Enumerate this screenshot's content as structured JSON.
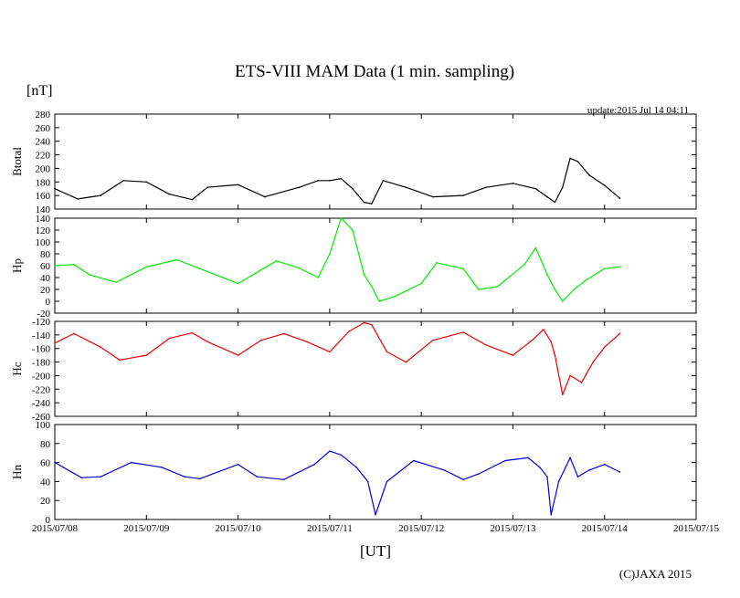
{
  "title": "ETS-VIII MAM Data (1 min. sampling)",
  "unit_label": "[nT]",
  "update_text": "update:2015 Jul 14 04:11",
  "xlabel": "[UT]",
  "copyright": "(C)JAXA 2015",
  "chart_data": [
    {
      "type": "line",
      "name": "Btotal",
      "ylabel": "Btotal",
      "color": "#000000",
      "ylim": [
        140,
        280
      ],
      "yticks": [
        140,
        160,
        180,
        200,
        220,
        240,
        260,
        280
      ],
      "x": [
        "2015/07/08 00:00",
        "2015/07/08 06:00",
        "2015/07/08 12:00",
        "2015/07/08 18:00",
        "2015/07/09 00:00",
        "2015/07/09 06:00",
        "2015/07/09 12:00",
        "2015/07/09 16:00",
        "2015/07/10 00:00",
        "2015/07/10 07:00",
        "2015/07/10 16:00",
        "2015/07/10 21:00",
        "2015/07/11 00:00",
        "2015/07/11 03:00",
        "2015/07/11 06:00",
        "2015/07/11 09:00",
        "2015/07/11 11:00",
        "2015/07/11 14:00",
        "2015/07/11 20:00",
        "2015/07/12 03:00",
        "2015/07/12 11:00",
        "2015/07/12 17:00",
        "2015/07/13 00:00",
        "2015/07/13 06:00",
        "2015/07/13 09:00",
        "2015/07/13 11:00",
        "2015/07/13 13:00",
        "2015/07/13 15:00",
        "2015/07/13 17:00",
        "2015/07/13 20:00",
        "2015/07/14 00:00",
        "2015/07/14 04:00"
      ],
      "values": [
        170,
        155,
        160,
        182,
        180,
        162,
        154,
        172,
        176,
        158,
        172,
        182,
        182,
        185,
        170,
        150,
        148,
        182,
        172,
        158,
        160,
        172,
        178,
        170,
        158,
        150,
        172,
        215,
        210,
        190,
        175,
        156
      ]
    },
    {
      "type": "line",
      "name": "Hp",
      "ylabel": "Hp",
      "color": "#00ee00",
      "ylim": [
        -20,
        140
      ],
      "yticks": [
        -20,
        0,
        20,
        40,
        60,
        80,
        100,
        120,
        140
      ],
      "x": [
        "2015/07/08 00:00",
        "2015/07/08 05:00",
        "2015/07/08 09:00",
        "2015/07/08 16:00",
        "2015/07/09 00:00",
        "2015/07/09 08:00",
        "2015/07/09 14:00",
        "2015/07/10 00:00",
        "2015/07/10 10:00",
        "2015/07/10 16:00",
        "2015/07/10 21:00",
        "2015/07/11 00:00",
        "2015/07/11 03:00",
        "2015/07/11 06:00",
        "2015/07/11 09:00",
        "2015/07/11 11:00",
        "2015/07/11 13:00",
        "2015/07/11 17:00",
        "2015/07/12 00:00",
        "2015/07/12 04:00",
        "2015/07/12 11:00",
        "2015/07/12 15:00",
        "2015/07/12 20:00",
        "2015/07/13 03:00",
        "2015/07/13 06:00",
        "2015/07/13 09:00",
        "2015/07/13 11:00",
        "2015/07/13 13:00",
        "2015/07/13 16:00",
        "2015/07/13 19:00",
        "2015/07/14 00:00",
        "2015/07/14 04:00"
      ],
      "values": [
        60,
        62,
        45,
        32,
        58,
        70,
        55,
        30,
        68,
        56,
        40,
        80,
        140,
        120,
        45,
        25,
        0,
        8,
        30,
        65,
        55,
        20,
        25,
        62,
        90,
        45,
        20,
        0,
        20,
        35,
        55,
        58
      ]
    },
    {
      "type": "line",
      "name": "Hc",
      "ylabel": "Hc",
      "color": "#ee0000",
      "ylim": [
        -260,
        -120
      ],
      "yticks": [
        -260,
        -240,
        -220,
        -200,
        -180,
        -160,
        -140,
        -120
      ],
      "x": [
        "2015/07/08 00:00",
        "2015/07/08 05:00",
        "2015/07/08 12:00",
        "2015/07/08 17:00",
        "2015/07/09 00:00",
        "2015/07/09 06:00",
        "2015/07/09 12:00",
        "2015/07/09 16:00",
        "2015/07/10 00:00",
        "2015/07/10 06:00",
        "2015/07/10 12:00",
        "2015/07/10 18:00",
        "2015/07/11 00:00",
        "2015/07/11 05:00",
        "2015/07/11 09:00",
        "2015/07/11 11:00",
        "2015/07/11 15:00",
        "2015/07/11 20:00",
        "2015/07/12 03:00",
        "2015/07/12 11:00",
        "2015/07/12 17:00",
        "2015/07/13 00:00",
        "2015/07/13 05:00",
        "2015/07/13 08:00",
        "2015/07/13 10:00",
        "2015/07/13 11:00",
        "2015/07/13 13:00",
        "2015/07/13 15:00",
        "2015/07/13 18:00",
        "2015/07/13 21:00",
        "2015/07/14 00:00",
        "2015/07/14 04:00"
      ],
      "values": [
        -152,
        -138,
        -158,
        -177,
        -170,
        -145,
        -137,
        -150,
        -170,
        -148,
        -138,
        -150,
        -165,
        -135,
        -122,
        -125,
        -165,
        -180,
        -148,
        -136,
        -155,
        -170,
        -148,
        -132,
        -150,
        -170,
        -228,
        -200,
        -210,
        -180,
        -158,
        -138
      ]
    },
    {
      "type": "line",
      "name": "Hn",
      "ylabel": "Hn",
      "color": "#0000dd",
      "ylim": [
        0,
        100
      ],
      "yticks": [
        0,
        20,
        40,
        60,
        80,
        100
      ],
      "x": [
        "2015/07/08 00:00",
        "2015/07/08 07:00",
        "2015/07/08 12:00",
        "2015/07/08 20:00",
        "2015/07/09 04:00",
        "2015/07/09 10:00",
        "2015/07/09 14:00",
        "2015/07/10 00:00",
        "2015/07/10 05:00",
        "2015/07/10 12:00",
        "2015/07/10 20:00",
        "2015/07/11 00:00",
        "2015/07/11 03:00",
        "2015/07/11 07:00",
        "2015/07/11 10:00",
        "2015/07/11 12:00",
        "2015/07/11 15:00",
        "2015/07/11 22:00",
        "2015/07/12 06:00",
        "2015/07/12 11:00",
        "2015/07/12 15:00",
        "2015/07/12 22:00",
        "2015/07/13 04:00",
        "2015/07/13 07:00",
        "2015/07/13 09:00",
        "2015/07/13 10:00",
        "2015/07/13 12:00",
        "2015/07/13 15:00",
        "2015/07/13 17:00",
        "2015/07/13 20:00",
        "2015/07/14 00:00",
        "2015/07/14 04:00"
      ],
      "values": [
        60,
        44,
        45,
        60,
        55,
        45,
        43,
        58,
        45,
        42,
        58,
        72,
        68,
        55,
        40,
        5,
        40,
        62,
        52,
        42,
        48,
        62,
        65,
        55,
        45,
        5,
        40,
        65,
        45,
        52,
        58,
        50
      ]
    }
  ],
  "x_axis": {
    "range": [
      "2015/07/08",
      "2015/07/15"
    ],
    "ticks": [
      "2015/07/08",
      "2015/07/09",
      "2015/07/10",
      "2015/07/11",
      "2015/07/12",
      "2015/07/13",
      "2015/07/14",
      "2015/07/15"
    ]
  }
}
